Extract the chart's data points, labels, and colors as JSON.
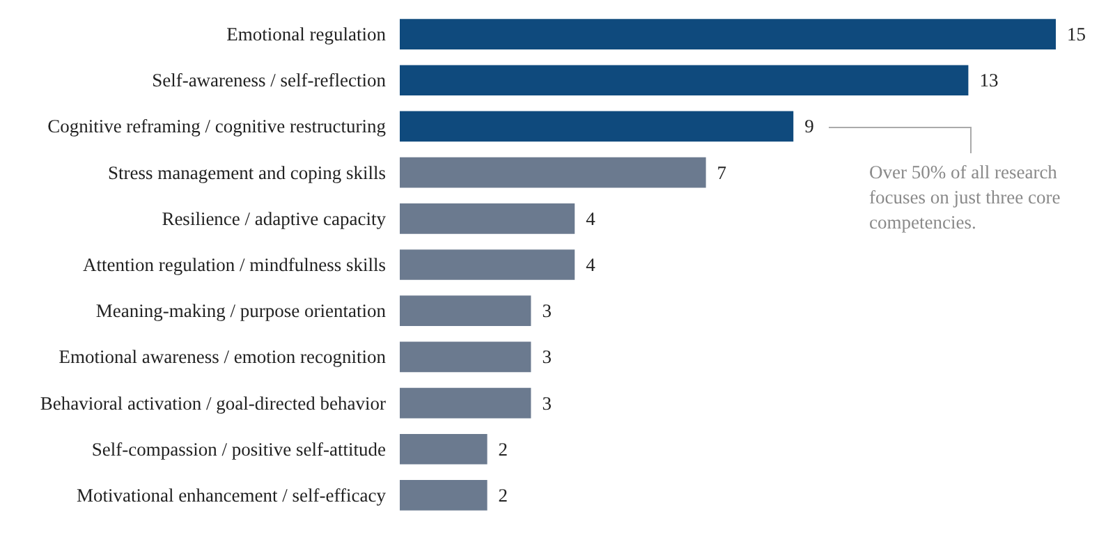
{
  "chart_data": {
    "type": "bar",
    "orientation": "horizontal",
    "categories": [
      "Emotional regulation",
      "Self-awareness / self-reflection",
      "Cognitive reframing / cognitive restructuring",
      "Stress management and coping skills",
      "Resilience / adaptive capacity",
      "Attention regulation / mindfulness skills",
      "Meaning-making / purpose orientation",
      "Emotional awareness / emotion recognition",
      "Behavioral activation / goal-directed behavior",
      "Self-compassion / positive self-attitude",
      "Motivational enhancement / self-efficacy"
    ],
    "values": [
      15,
      13,
      9,
      7,
      4,
      4,
      3,
      3,
      3,
      2,
      2
    ],
    "colors": [
      "#0f4a7d",
      "#0f4a7d",
      "#0f4a7d",
      "#6b7a8f",
      "#6b7a8f",
      "#6b7a8f",
      "#6b7a8f",
      "#6b7a8f",
      "#6b7a8f",
      "#6b7a8f",
      "#6b7a8f"
    ],
    "data_labels": true,
    "annotations": [
      "Over 50% of all research focuses on just three core competencies."
    ]
  }
}
